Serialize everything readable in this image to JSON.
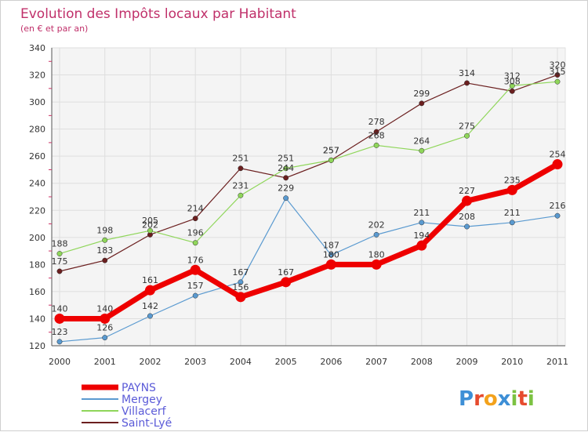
{
  "chart_data": {
    "type": "line",
    "title": "Evolution des Impôts locaux par Habitant",
    "subtitle": "(en € et par an)",
    "xlabel": "",
    "ylabel": "",
    "ylim": [
      120,
      340
    ],
    "y_ticks": [
      120,
      140,
      160,
      180,
      200,
      220,
      240,
      260,
      280,
      300,
      320,
      340
    ],
    "x": [
      "2000",
      "2001",
      "2002",
      "2003",
      "2004",
      "2005",
      "2006",
      "2007",
      "2008",
      "2009",
      "2010",
      "2011"
    ],
    "grid": true,
    "legend_position": "bottom-left",
    "series": [
      {
        "name": "Saint-Lyé",
        "color": "#6b1f1f",
        "values": [
          175,
          183,
          202,
          214,
          251,
          244,
          257,
          278,
          299,
          314,
          308,
          320
        ]
      },
      {
        "name": "Villacerf",
        "color": "#8fd65a",
        "values": [
          188,
          198,
          205,
          196,
          231,
          251,
          257,
          268,
          264,
          275,
          312,
          315
        ]
      },
      {
        "name": "Mergey",
        "color": "#5a9ad0",
        "values": [
          123,
          126,
          142,
          157,
          167,
          229,
          187,
          202,
          211,
          208,
          211,
          216
        ]
      },
      {
        "name": "PAYNS",
        "color": "#ee0000",
        "values": [
          140,
          140,
          161,
          176,
          156,
          167,
          180,
          180,
          194,
          227,
          235,
          254
        ]
      }
    ]
  },
  "legend_order": [
    "PAYNS",
    "Mergey",
    "Villacerf",
    "Saint-Lyé"
  ],
  "logo": {
    "text": "Proxiti",
    "letters": [
      "P",
      "r",
      "o",
      "x",
      "i",
      "t",
      "i"
    ],
    "colors": [
      "#3d8fd6",
      "#e64b2e",
      "#f3a21c",
      "#3d8fd6",
      "#7cc242",
      "#e64b2e",
      "#7cc242"
    ]
  }
}
